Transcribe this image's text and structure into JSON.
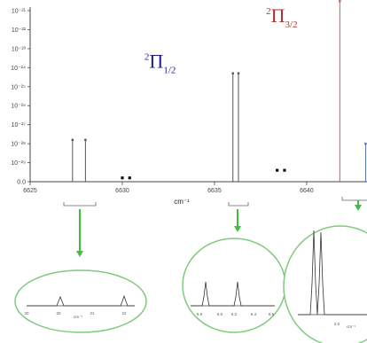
{
  "chart_data": {
    "type": "line",
    "title": "",
    "xlabel": "cm⁻¹",
    "ylabel": "",
    "xlim": [
      6625,
      6643
    ],
    "x_ticks": [
      "6625",
      "6630",
      "6635",
      "6640"
    ],
    "y_ticks": [
      "0.0",
      "10⁻²⁹",
      "10⁻²⁸",
      "10⁻²⁷",
      "10⁻²⁶",
      "10⁻²⁵",
      "10⁻²⁴",
      "10⁻²³",
      "10⁻²²",
      "10⁻²¹"
    ],
    "grid": false,
    "annotations": [
      {
        "sup": "2",
        "letter": "Π",
        "sub": "1/2",
        "color": "#1f1f8f",
        "x": 6631.2,
        "level": 6.0
      },
      {
        "sup": "2",
        "letter": "Π",
        "sub": "3/2",
        "color": "#b03030",
        "x": 6637.8,
        "level": 8.4
      }
    ],
    "series": [
      {
        "color": "#555555",
        "x": [
          6627.3,
          6628.0,
          6636.0,
          6636.3
        ],
        "values": [
          2.2,
          2.2,
          5.7,
          5.7
        ]
      },
      {
        "color": "#c06060",
        "x": [
          6641.8
        ],
        "values": [
          9.5
        ]
      },
      {
        "color": "#4a7aa8",
        "x": [
          6643.2
        ],
        "values": [
          2.0
        ]
      }
    ],
    "markers": {
      "color": "#111111",
      "x": [
        6630.0,
        6630.4,
        6638.4,
        6638.8
      ],
      "values": [
        0.2,
        0.2,
        0.6,
        0.6
      ]
    },
    "insets": [
      {
        "x_ticks": [
          "20",
          "20",
          "21",
          "22"
        ],
        "xlabel": "cm⁻¹"
      },
      {
        "x_ticks": [
          "5.8",
          "6.0",
          "6.2",
          "6.4",
          "6.6"
        ],
        "xlabel": ""
      },
      {
        "x_ticks": [
          "2.0"
        ],
        "xlabel": "cm⁻¹"
      }
    ],
    "arrow_color": "#3fbf3f",
    "inset_border_color": "#7fc97f"
  }
}
